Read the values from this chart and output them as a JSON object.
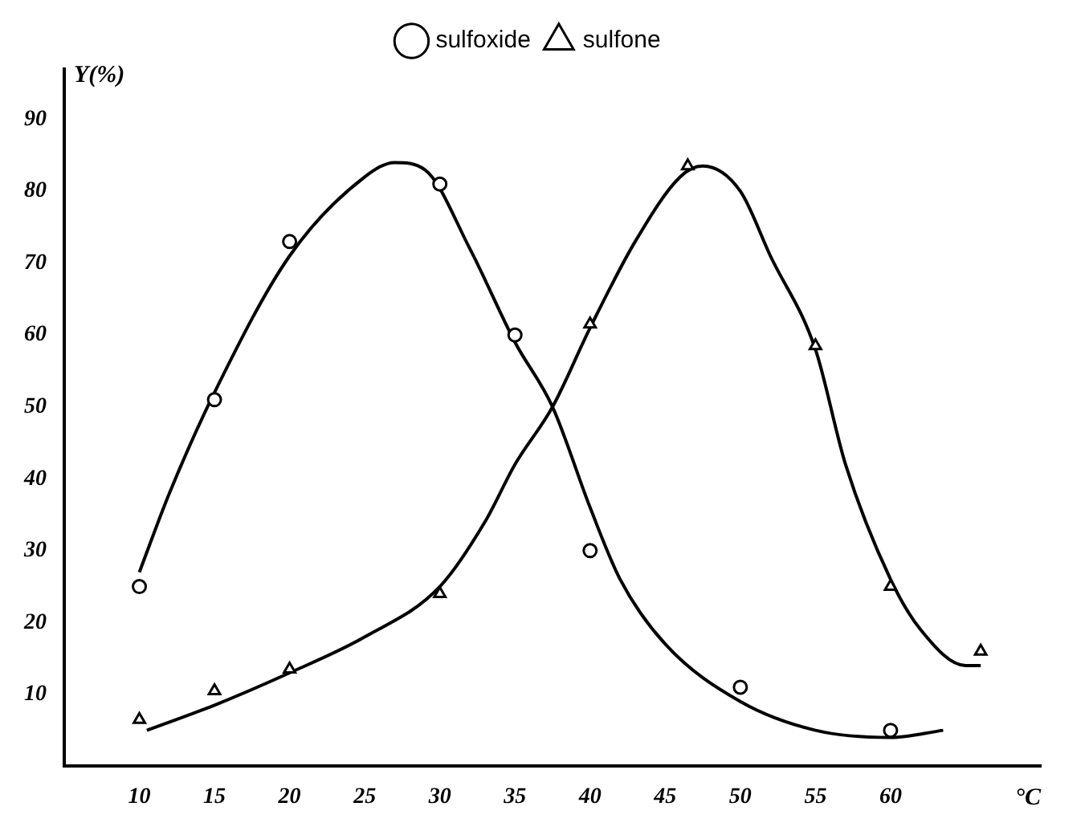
{
  "chart_data": {
    "type": "scatter",
    "xlabel": "°C",
    "ylabel": "Y(%)",
    "xlim": [
      5,
      70
    ],
    "ylim": [
      0,
      97
    ],
    "xticks": [
      10,
      15,
      20,
      25,
      30,
      35,
      40,
      45,
      50,
      55,
      60
    ],
    "yticks": [
      10,
      20,
      30,
      40,
      50,
      60,
      70,
      80,
      90
    ],
    "grid": false,
    "legend": "top",
    "series": [
      {
        "name": "sulfoxide",
        "marker": "circle",
        "color": "#000000",
        "x": [
          10,
          15,
          20,
          30,
          35,
          40,
          50,
          60
        ],
        "values": [
          25,
          51,
          73,
          81,
          60,
          30,
          11,
          5
        ]
      },
      {
        "name": "sulfone",
        "marker": "triangle",
        "color": "#000000",
        "x": [
          10,
          15,
          20,
          30,
          40,
          46.5,
          55,
          60,
          66
        ],
        "values": [
          6.5,
          10.5,
          13.5,
          24,
          61.5,
          83.5,
          58.5,
          25,
          16
        ]
      },
      {
        "type": "line",
        "marker": "none",
        "color": "#000000",
        "x": [
          10,
          12,
          15,
          20,
          25,
          27,
          29,
          32,
          35,
          37.5,
          40,
          42,
          45,
          50,
          55,
          60,
          63.5
        ],
        "values": [
          27,
          38,
          52,
          71,
          82,
          84,
          83,
          72,
          59,
          50,
          36,
          26,
          17,
          9,
          5,
          4,
          5
        ]
      },
      {
        "type": "line",
        "marker": "none",
        "color": "#000000",
        "x": [
          10.5,
          15,
          20,
          25,
          30,
          33,
          35,
          37.5,
          40,
          43,
          46,
          47.5,
          50,
          52,
          55,
          57,
          60,
          62,
          65,
          66
        ],
        "values": [
          5,
          8.5,
          13,
          18,
          25,
          34,
          42,
          50,
          61,
          73,
          82,
          83.5,
          80,
          71,
          58,
          42,
          26,
          19,
          14,
          14
        ]
      }
    ]
  }
}
